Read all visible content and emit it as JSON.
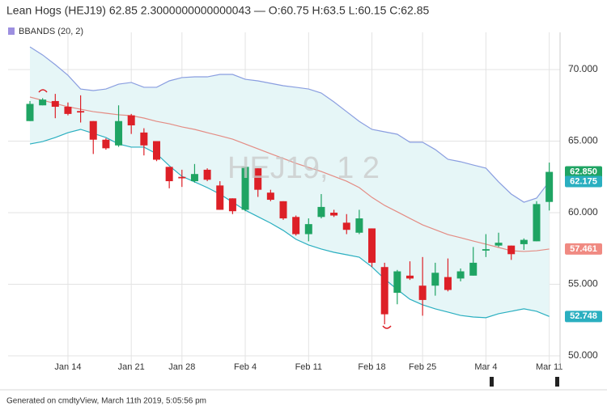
{
  "header": "Lean Hogs (HEJ19) 62.85 2.3000000000000043 — O:60.75 H:63.5 L:60.15 C:62.85",
  "watermark": "HEJ19, 1 2",
  "footer": "Generated on cmdtyView, March 11th 2019, 5:05:56 pm",
  "chart_data": {
    "type": "candlestick",
    "grid": true,
    "up_color": "#1fa463",
    "down_color": "#dd2027",
    "ylim": [
      48.98,
      72.6
    ],
    "yticks": [
      {
        "value": 50,
        "label": "50.000"
      },
      {
        "value": 55,
        "label": "55.000"
      },
      {
        "value": 60,
        "label": "60.000"
      },
      {
        "value": 65,
        "label": "65.000"
      },
      {
        "value": 70,
        "label": "70.000"
      }
    ],
    "categories": [
      null,
      null,
      null,
      "Jan 14",
      null,
      null,
      null,
      null,
      "Jan 21",
      null,
      null,
      null,
      "Jan 28",
      null,
      null,
      null,
      null,
      "Feb 4",
      null,
      null,
      null,
      null,
      "Feb 11",
      null,
      null,
      null,
      null,
      "Feb 18",
      null,
      null,
      null,
      "Feb 25",
      null,
      null,
      null,
      null,
      "Mar 4",
      null,
      null,
      null,
      null,
      "Mar 11"
    ],
    "open": [
      66.4,
      67.5,
      67.8,
      67.4,
      67.1,
      66.4,
      65.1,
      64.7,
      66.8,
      65.6,
      65.0,
      63.2,
      62.5,
      62.2,
      63.0,
      61.9,
      61.0,
      60.2,
      63.1,
      61.4,
      60.8,
      59.7,
      58.5,
      59.7,
      60.0,
      59.3,
      58.6,
      58.9,
      56.2,
      54.4,
      55.6,
      54.9,
      54.9,
      55.5,
      55.4,
      55.6,
      57.35,
      57.7,
      57.7,
      57.8,
      58.0,
      60.75
    ],
    "high": [
      67.8,
      68.0,
      68.3,
      67.7,
      68.2,
      66.4,
      65.2,
      67.5,
      66.9,
      65.9,
      65.0,
      63.2,
      63.0,
      63.4,
      63.1,
      62.2,
      61.0,
      63.2,
      63.1,
      61.6,
      60.8,
      59.8,
      59.6,
      61.3,
      60.2,
      59.9,
      60.2,
      58.9,
      56.5,
      56.0,
      56.6,
      56.9,
      56.5,
      56.8,
      56.1,
      57.6,
      58.5,
      58.6,
      57.7,
      58.2,
      60.8,
      63.5
    ],
    "low": [
      66.4,
      67.5,
      66.6,
      66.8,
      66.3,
      64.1,
      64.4,
      64.6,
      65.5,
      64.0,
      63.6,
      61.7,
      61.8,
      62.1,
      62.2,
      60.2,
      59.9,
      60.1,
      61.1,
      60.8,
      59.5,
      58.4,
      58.0,
      59.6,
      59.7,
      58.5,
      58.5,
      56.2,
      52.2,
      53.6,
      55.3,
      52.8,
      54.2,
      54.5,
      55.2,
      55.6,
      56.9,
      57.6,
      56.7,
      57.4,
      58.0,
      60.15
    ],
    "close": [
      67.6,
      67.9,
      67.4,
      66.9,
      67.0,
      65.1,
      64.5,
      66.4,
      66.1,
      64.7,
      63.7,
      62.2,
      62.4,
      62.7,
      62.3,
      60.2,
      60.1,
      63.2,
      61.6,
      60.9,
      59.6,
      58.5,
      59.2,
      60.4,
      59.8,
      58.8,
      59.6,
      56.5,
      52.9,
      55.9,
      55.4,
      53.9,
      55.8,
      54.6,
      55.9,
      56.5,
      57.45,
      57.9,
      57.1,
      58.1,
      60.6,
      62.85
    ],
    "indicator": {
      "name": "BBANDS (20, 2)",
      "color": "#9d8fe0",
      "fill": "#e6f6f7",
      "upper_color": "#8a9ee0",
      "middle_color": "#e48c84",
      "lower_color": "#2aafc0",
      "upper": [
        71.58,
        71.02,
        70.34,
        69.6,
        68.64,
        68.53,
        68.64,
        68.98,
        69.1,
        68.76,
        68.76,
        69.21,
        69.44,
        69.49,
        69.49,
        69.66,
        69.66,
        69.32,
        69.21,
        69.04,
        68.87,
        68.76,
        68.64,
        68.36,
        67.74,
        67.06,
        66.38,
        65.82,
        65.65,
        65.48,
        64.92,
        64.92,
        64.41,
        63.73,
        63.56,
        63.33,
        63.11,
        62.15,
        61.3,
        60.73,
        61.02,
        62.175
      ],
      "middle": [
        68.08,
        67.85,
        67.63,
        67.4,
        67.23,
        67.06,
        66.95,
        66.84,
        66.78,
        66.61,
        66.38,
        66.21,
        65.99,
        65.82,
        65.59,
        65.37,
        65.14,
        64.8,
        64.46,
        64.12,
        63.79,
        63.45,
        63.16,
        62.88,
        62.54,
        62.2,
        61.75,
        61.07,
        60.51,
        60.06,
        59.6,
        59.15,
        58.81,
        58.47,
        58.25,
        58.02,
        57.8,
        57.57,
        57.34,
        57.29,
        57.34,
        57.461
      ],
      "lower": [
        64.8,
        64.97,
        65.25,
        65.59,
        65.82,
        65.54,
        65.25,
        64.8,
        64.58,
        64.58,
        64.12,
        63.28,
        62.54,
        62.15,
        61.75,
        61.3,
        60.73,
        60.17,
        59.72,
        59.27,
        58.76,
        58.14,
        57.74,
        57.46,
        57.23,
        57.06,
        56.89,
        56.21,
        55.37,
        54.63,
        53.95,
        53.56,
        53.28,
        53.05,
        52.82,
        52.71,
        52.66,
        52.94,
        53.11,
        53.28,
        53.11,
        52.748
      ]
    },
    "last_value_labels": [
      {
        "value": 62.85,
        "label": "62.850",
        "color": "#1fa463"
      },
      {
        "value": 62.175,
        "label": "62.175",
        "color": "#2aafc0"
      },
      {
        "value": 57.461,
        "label": "57.461",
        "color": "#f08a82"
      },
      {
        "value": 52.748,
        "label": "52.748",
        "color": "#2aafc0"
      }
    ]
  }
}
